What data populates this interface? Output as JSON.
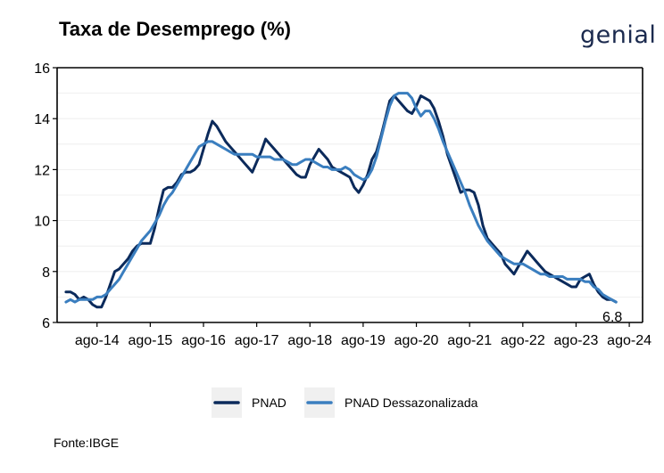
{
  "title": "Taxa de Desemprego (%)",
  "brand": "genial",
  "source": "Fonte:IBGE",
  "chart_data": {
    "type": "line",
    "title": "Taxa de Desemprego (%)",
    "xlabel": "",
    "ylabel": "",
    "ylim": [
      6,
      16
    ],
    "yticks": [
      6,
      8,
      10,
      12,
      14,
      16
    ],
    "xlim": [
      "2013-11",
      "2024-11"
    ],
    "xticks": [
      {
        "date": "2014-08",
        "label": "ago-14"
      },
      {
        "date": "2015-08",
        "label": "ago-15"
      },
      {
        "date": "2016-08",
        "label": "ago-16"
      },
      {
        "date": "2017-08",
        "label": "ago-17"
      },
      {
        "date": "2018-08",
        "label": "ago-18"
      },
      {
        "date": "2019-08",
        "label": "ago-19"
      },
      {
        "date": "2020-08",
        "label": "ago-20"
      },
      {
        "date": "2021-08",
        "label": "ago-21"
      },
      {
        "date": "2022-08",
        "label": "ago-22"
      },
      {
        "date": "2023-08",
        "label": "ago-23"
      },
      {
        "date": "2024-08",
        "label": "ago-24"
      }
    ],
    "grid": true,
    "legend_position": "bottom",
    "end_label": {
      "series": "PNAD",
      "date": "2024-08",
      "value": "6.8"
    },
    "series": [
      {
        "name": "PNAD",
        "color": "#0b2a5b",
        "points": [
          [
            "2014-01",
            7.2
          ],
          [
            "2014-02",
            7.2
          ],
          [
            "2014-03",
            7.1
          ],
          [
            "2014-04",
            6.9
          ],
          [
            "2014-05",
            7.0
          ],
          [
            "2014-06",
            6.9
          ],
          [
            "2014-07",
            6.7
          ],
          [
            "2014-08",
            6.6
          ],
          [
            "2014-09",
            6.6
          ],
          [
            "2014-10",
            7.0
          ],
          [
            "2014-11",
            7.5
          ],
          [
            "2014-12",
            8.0
          ],
          [
            "2015-01",
            8.1
          ],
          [
            "2015-02",
            8.3
          ],
          [
            "2015-03",
            8.5
          ],
          [
            "2015-04",
            8.8
          ],
          [
            "2015-05",
            9.0
          ],
          [
            "2015-06",
            9.1
          ],
          [
            "2015-07",
            9.1
          ],
          [
            "2015-08",
            9.1
          ],
          [
            "2015-09",
            9.7
          ],
          [
            "2015-10",
            10.5
          ],
          [
            "2015-11",
            11.2
          ],
          [
            "2015-12",
            11.3
          ],
          [
            "2016-01",
            11.3
          ],
          [
            "2016-02",
            11.5
          ],
          [
            "2016-03",
            11.8
          ],
          [
            "2016-04",
            11.9
          ],
          [
            "2016-05",
            11.9
          ],
          [
            "2016-06",
            12.0
          ],
          [
            "2016-07",
            12.2
          ],
          [
            "2016-08",
            12.8
          ],
          [
            "2016-09",
            13.4
          ],
          [
            "2016-10",
            13.9
          ],
          [
            "2016-11",
            13.7
          ],
          [
            "2016-12",
            13.4
          ],
          [
            "2017-01",
            13.1
          ],
          [
            "2017-02",
            12.9
          ],
          [
            "2017-03",
            12.7
          ],
          [
            "2017-04",
            12.5
          ],
          [
            "2017-05",
            12.3
          ],
          [
            "2017-06",
            12.1
          ],
          [
            "2017-07",
            11.9
          ],
          [
            "2017-08",
            12.3
          ],
          [
            "2017-09",
            12.7
          ],
          [
            "2017-10",
            13.2
          ],
          [
            "2017-11",
            13.0
          ],
          [
            "2017-12",
            12.8
          ],
          [
            "2018-01",
            12.6
          ],
          [
            "2018-02",
            12.4
          ],
          [
            "2018-03",
            12.2
          ],
          [
            "2018-04",
            12.0
          ],
          [
            "2018-05",
            11.8
          ],
          [
            "2018-06",
            11.7
          ],
          [
            "2018-07",
            11.7
          ],
          [
            "2018-08",
            12.2
          ],
          [
            "2018-09",
            12.5
          ],
          [
            "2018-10",
            12.8
          ],
          [
            "2018-11",
            12.6
          ],
          [
            "2018-12",
            12.4
          ],
          [
            "2019-01",
            12.1
          ],
          [
            "2019-02",
            12.0
          ],
          [
            "2019-03",
            11.9
          ],
          [
            "2019-04",
            11.8
          ],
          [
            "2019-05",
            11.7
          ],
          [
            "2019-06",
            11.3
          ],
          [
            "2019-07",
            11.1
          ],
          [
            "2019-08",
            11.4
          ],
          [
            "2019-09",
            11.8
          ],
          [
            "2019-10",
            12.4
          ],
          [
            "2019-11",
            12.7
          ],
          [
            "2019-12",
            13.3
          ],
          [
            "2020-01",
            14.0
          ],
          [
            "2020-02",
            14.7
          ],
          [
            "2020-03",
            14.9
          ],
          [
            "2020-04",
            14.7
          ],
          [
            "2020-05",
            14.5
          ],
          [
            "2020-06",
            14.3
          ],
          [
            "2020-07",
            14.2
          ],
          [
            "2020-08",
            14.5
          ],
          [
            "2020-09",
            14.9
          ],
          [
            "2020-10",
            14.8
          ],
          [
            "2020-11",
            14.7
          ],
          [
            "2020-12",
            14.4
          ],
          [
            "2021-01",
            13.9
          ],
          [
            "2021-02",
            13.3
          ],
          [
            "2021-03",
            12.6
          ],
          [
            "2021-04",
            12.1
          ],
          [
            "2021-05",
            11.6
          ],
          [
            "2021-06",
            11.1
          ],
          [
            "2021-07",
            11.2
          ],
          [
            "2021-08",
            11.2
          ],
          [
            "2021-09",
            11.1
          ],
          [
            "2021-10",
            10.6
          ],
          [
            "2021-11",
            9.8
          ],
          [
            "2021-12",
            9.3
          ],
          [
            "2022-01",
            9.1
          ],
          [
            "2022-02",
            8.9
          ],
          [
            "2022-03",
            8.7
          ],
          [
            "2022-04",
            8.3
          ],
          [
            "2022-05",
            8.1
          ],
          [
            "2022-06",
            7.9
          ],
          [
            "2022-07",
            8.2
          ],
          [
            "2022-08",
            8.5
          ],
          [
            "2022-09",
            8.8
          ],
          [
            "2022-10",
            8.6
          ],
          [
            "2022-11",
            8.4
          ],
          [
            "2022-12",
            8.2
          ],
          [
            "2023-01",
            8.0
          ],
          [
            "2023-02",
            7.9
          ],
          [
            "2023-03",
            7.8
          ],
          [
            "2023-04",
            7.7
          ],
          [
            "2023-05",
            7.6
          ],
          [
            "2023-06",
            7.5
          ],
          [
            "2023-07",
            7.4
          ],
          [
            "2023-08",
            7.4
          ],
          [
            "2023-09",
            7.7
          ],
          [
            "2023-10",
            7.8
          ],
          [
            "2023-11",
            7.9
          ],
          [
            "2023-12",
            7.5
          ],
          [
            "2024-01",
            7.2
          ],
          [
            "2024-02",
            7.0
          ],
          [
            "2024-03",
            6.9
          ],
          [
            "2024-04",
            6.9
          ],
          [
            "2024-05",
            6.8
          ]
        ]
      },
      {
        "name": "PNAD Dessazonalizada",
        "color": "#3a7ebf",
        "points": [
          [
            "2014-01",
            6.8
          ],
          [
            "2014-02",
            6.9
          ],
          [
            "2014-03",
            6.8
          ],
          [
            "2014-04",
            6.9
          ],
          [
            "2014-05",
            6.9
          ],
          [
            "2014-06",
            6.9
          ],
          [
            "2014-07",
            6.9
          ],
          [
            "2014-08",
            7.0
          ],
          [
            "2014-09",
            7.0
          ],
          [
            "2014-10",
            7.1
          ],
          [
            "2014-11",
            7.3
          ],
          [
            "2014-12",
            7.5
          ],
          [
            "2015-01",
            7.7
          ],
          [
            "2015-02",
            8.0
          ],
          [
            "2015-03",
            8.3
          ],
          [
            "2015-04",
            8.6
          ],
          [
            "2015-05",
            8.9
          ],
          [
            "2015-06",
            9.2
          ],
          [
            "2015-07",
            9.4
          ],
          [
            "2015-08",
            9.6
          ],
          [
            "2015-09",
            9.9
          ],
          [
            "2015-10",
            10.2
          ],
          [
            "2015-11",
            10.6
          ],
          [
            "2015-12",
            10.9
          ],
          [
            "2016-01",
            11.1
          ],
          [
            "2016-02",
            11.4
          ],
          [
            "2016-03",
            11.7
          ],
          [
            "2016-04",
            12.0
          ],
          [
            "2016-05",
            12.3
          ],
          [
            "2016-06",
            12.6
          ],
          [
            "2016-07",
            12.9
          ],
          [
            "2016-08",
            13.0
          ],
          [
            "2016-09",
            13.1
          ],
          [
            "2016-10",
            13.1
          ],
          [
            "2016-11",
            13.0
          ],
          [
            "2016-12",
            12.9
          ],
          [
            "2017-01",
            12.8
          ],
          [
            "2017-02",
            12.7
          ],
          [
            "2017-03",
            12.6
          ],
          [
            "2017-04",
            12.6
          ],
          [
            "2017-05",
            12.6
          ],
          [
            "2017-06",
            12.6
          ],
          [
            "2017-07",
            12.6
          ],
          [
            "2017-08",
            12.5
          ],
          [
            "2017-09",
            12.5
          ],
          [
            "2017-10",
            12.5
          ],
          [
            "2017-11",
            12.5
          ],
          [
            "2017-12",
            12.4
          ],
          [
            "2018-01",
            12.4
          ],
          [
            "2018-02",
            12.4
          ],
          [
            "2018-03",
            12.3
          ],
          [
            "2018-04",
            12.2
          ],
          [
            "2018-05",
            12.2
          ],
          [
            "2018-06",
            12.3
          ],
          [
            "2018-07",
            12.4
          ],
          [
            "2018-08",
            12.4
          ],
          [
            "2018-09",
            12.3
          ],
          [
            "2018-10",
            12.2
          ],
          [
            "2018-11",
            12.1
          ],
          [
            "2018-12",
            12.1
          ],
          [
            "2019-01",
            12.0
          ],
          [
            "2019-02",
            12.0
          ],
          [
            "2019-03",
            12.0
          ],
          [
            "2019-04",
            12.1
          ],
          [
            "2019-05",
            12.0
          ],
          [
            "2019-06",
            11.8
          ],
          [
            "2019-07",
            11.7
          ],
          [
            "2019-08",
            11.6
          ],
          [
            "2019-09",
            11.7
          ],
          [
            "2019-10",
            12.0
          ],
          [
            "2019-11",
            12.5
          ],
          [
            "2019-12",
            13.2
          ],
          [
            "2020-01",
            13.9
          ],
          [
            "2020-02",
            14.5
          ],
          [
            "2020-03",
            14.9
          ],
          [
            "2020-04",
            15.0
          ],
          [
            "2020-05",
            15.0
          ],
          [
            "2020-06",
            15.0
          ],
          [
            "2020-07",
            14.8
          ],
          [
            "2020-08",
            14.4
          ],
          [
            "2020-09",
            14.1
          ],
          [
            "2020-10",
            14.3
          ],
          [
            "2020-11",
            14.3
          ],
          [
            "2020-12",
            14.0
          ],
          [
            "2021-01",
            13.6
          ],
          [
            "2021-02",
            13.1
          ],
          [
            "2021-03",
            12.7
          ],
          [
            "2021-04",
            12.3
          ],
          [
            "2021-05",
            11.9
          ],
          [
            "2021-06",
            11.5
          ],
          [
            "2021-07",
            11.1
          ],
          [
            "2021-08",
            10.6
          ],
          [
            "2021-09",
            10.2
          ],
          [
            "2021-10",
            9.8
          ],
          [
            "2021-11",
            9.5
          ],
          [
            "2021-12",
            9.2
          ],
          [
            "2022-01",
            9.0
          ],
          [
            "2022-02",
            8.8
          ],
          [
            "2022-03",
            8.6
          ],
          [
            "2022-04",
            8.5
          ],
          [
            "2022-05",
            8.4
          ],
          [
            "2022-06",
            8.3
          ],
          [
            "2022-07",
            8.3
          ],
          [
            "2022-08",
            8.3
          ],
          [
            "2022-09",
            8.2
          ],
          [
            "2022-10",
            8.1
          ],
          [
            "2022-11",
            8.0
          ],
          [
            "2022-12",
            7.9
          ],
          [
            "2023-01",
            7.9
          ],
          [
            "2023-02",
            7.8
          ],
          [
            "2023-03",
            7.8
          ],
          [
            "2023-04",
            7.8
          ],
          [
            "2023-05",
            7.8
          ],
          [
            "2023-06",
            7.7
          ],
          [
            "2023-07",
            7.7
          ],
          [
            "2023-08",
            7.7
          ],
          [
            "2023-09",
            7.7
          ],
          [
            "2023-10",
            7.6
          ],
          [
            "2023-11",
            7.6
          ],
          [
            "2023-12",
            7.4
          ],
          [
            "2024-01",
            7.3
          ],
          [
            "2024-02",
            7.1
          ],
          [
            "2024-03",
            7.0
          ],
          [
            "2024-04",
            6.9
          ],
          [
            "2024-05",
            6.8
          ]
        ]
      }
    ]
  }
}
